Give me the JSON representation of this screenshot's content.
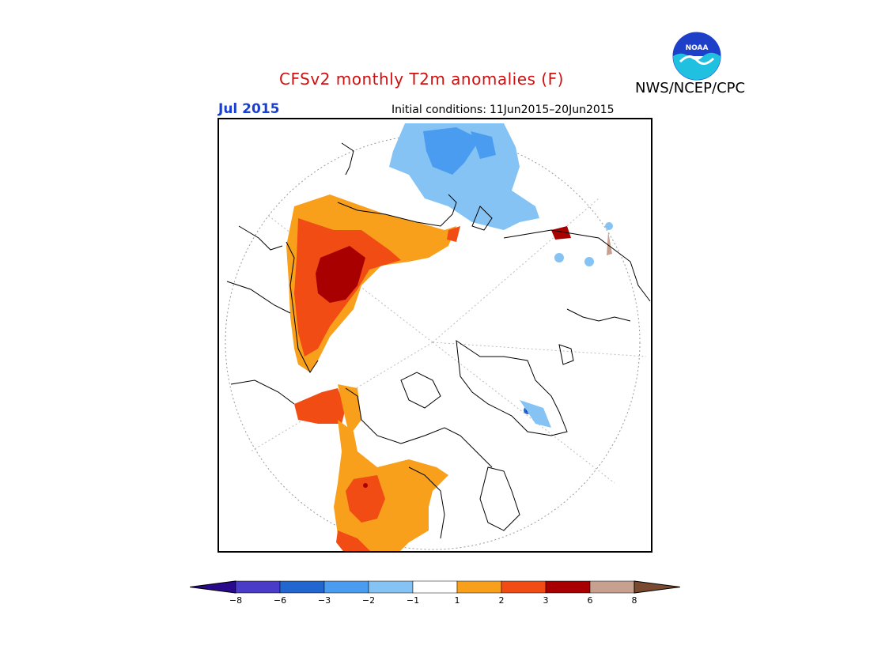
{
  "header": {
    "title": "CFSv2 monthly T2m anomalies (F)",
    "agency": "NWS/NCEP/CPC",
    "period": "Jul 2015",
    "ic_label": "Initial conditions:",
    "ic_value": "11Jun2015–20Jun2015",
    "logo_text": "NOAA"
  },
  "map": {
    "projection": "north-polar-stereographic",
    "regions": [
      {
        "name": "Scandinavia / Eastern Europe",
        "anomaly_class": "-2 to -1",
        "color": "#84c3f4"
      },
      {
        "name": "Northern Russia (core)",
        "anomaly_class": "-3 to -2",
        "color": "#4a9cf0"
      },
      {
        "name": "Eastern Siberia",
        "anomaly_class": "1 to 2",
        "color": "#f8a01c"
      },
      {
        "name": "Eastern Siberia (inner)",
        "anomaly_class": "2 to 3",
        "color": "#f04c14"
      },
      {
        "name": "Yakutia core",
        "anomaly_class": "3 to 6",
        "color": "#a80000"
      },
      {
        "name": "Alaska",
        "anomaly_class": "2 to 3",
        "color": "#f04c14"
      },
      {
        "name": "Western Canada / Western US",
        "anomaly_class": "1 to 2",
        "color": "#f8a01c"
      },
      {
        "name": "Western US (inner)",
        "anomaly_class": "2 to 3",
        "color": "#f04c14"
      },
      {
        "name": "Greenland",
        "anomaly_class": "-2 to -1",
        "color": "#84c3f4"
      }
    ]
  },
  "colorbar": {
    "colors": [
      "#2a0a8c",
      "#4a3cc8",
      "#2266d0",
      "#4a9cf0",
      "#84c3f4",
      "#ffffff",
      "#f8a01c",
      "#f04c14",
      "#a80000",
      "#c8a090",
      "#7a4a30"
    ],
    "labels": [
      "−8",
      "−6",
      "−3",
      "−2",
      "−1",
      "1",
      "2",
      "3",
      "6",
      "8"
    ]
  }
}
